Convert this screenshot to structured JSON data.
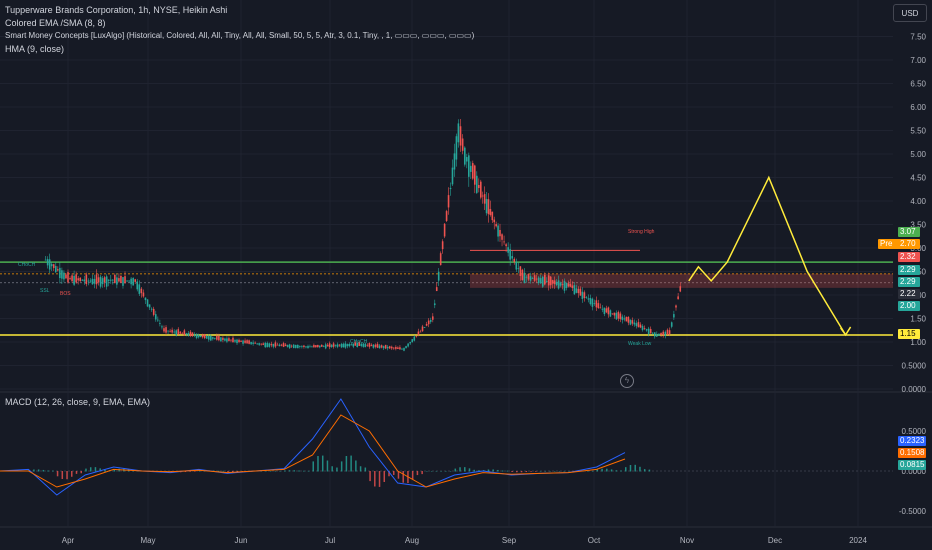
{
  "legend": {
    "title": "Tupperware Brands Corporation, 1h, NYSE, Heikin Ashi",
    "ema": "Colored EMA /SMA (8, 8)",
    "smc": "Smart Money Concepts [LuxAlgo] (Historical, Colored, All, All, Tiny, All, All, Small, 50, 5, 5, Atr, 3, 0.1, Tiny, , 1, ▭▭▭, ▭▭▭, ▭▭▭)",
    "hma": "HMA (9, close)",
    "macd": "MACD (12, 26, close, 9, EMA, EMA)"
  },
  "currency_button": "USD",
  "colors": {
    "background": "#161a25",
    "up": "#26a69a",
    "down": "#ef5350",
    "yellow": "#ffeb3b",
    "green_line": "#4caf50",
    "macd": "#2962ff",
    "signal": "#ff6d00"
  },
  "chart_data": [
    {
      "type": "line",
      "series": [
        {
          "name": "",
          "x": [
            "Mar 25",
            "Apr 1",
            "Apr 8",
            "Apr 15",
            "Apr 22",
            "May 1",
            "May 15",
            "Jun 1",
            "Jun 15",
            "Jul 1",
            "Jul 15",
            "Jul 24",
            "Aug 1",
            "Aug 3",
            "Aug 8",
            "Aug 14",
            "Aug 21",
            "Aug 28",
            "Sep 5",
            "Sep 15",
            "Sep 25",
            "Oct 2",
            "Oct 6",
            "Oct 10"
          ],
          "values": [
            2.75,
            2.35,
            2.3,
            2.32,
            2.3,
            1.25,
            1.1,
            0.95,
            0.9,
            0.95,
            0.85,
            1.5,
            5.5,
            5.0,
            4.2,
            3.3,
            2.4,
            2.3,
            2.2,
            1.7,
            1.4,
            1.15,
            1.2,
            2.3
          ]
        }
      ],
      "projection": {
        "x": [
          "Oct 12",
          "Oct 15",
          "Oct 19",
          "Oct 24",
          "Nov 6",
          "Nov 18",
          "Nov 30"
        ],
        "values": [
          2.3,
          2.6,
          2.3,
          2.7,
          4.5,
          2.5,
          1.15
        ]
      },
      "levels": [
        {
          "name": "green-resistance",
          "value": 2.7
        },
        {
          "name": "yellow-support",
          "value": 1.15
        },
        {
          "name": "orange-dotted",
          "value": 2.45
        },
        {
          "name": "gray-dotted",
          "value": 2.26
        }
      ],
      "annotations": [
        "CHoCH",
        "BOS",
        "SSL",
        "CHoCH",
        "Strong High",
        "Weak Low"
      ],
      "y_ticks": [
        "7.50",
        "7.00",
        "6.50",
        "6.00",
        "5.50",
        "5.00",
        "4.50",
        "4.00",
        "3.50",
        "3.00",
        "2.50",
        "2.00",
        "1.50",
        "1.00",
        "0.5000",
        "0.0000"
      ],
      "x_ticks": [
        "Apr",
        "May",
        "Jun",
        "Jul",
        "Aug",
        "Sep",
        "Oct",
        "Nov",
        "Dec",
        "2024"
      ],
      "price_tags": [
        {
          "label": "3.07",
          "color": "#4caf50"
        },
        {
          "label": "Pre",
          "color": "#ff9800"
        },
        {
          "label": "2.70",
          "color": "#ff9800"
        },
        {
          "label": "2.32",
          "color": "#ef5350"
        },
        {
          "label": "2.29",
          "color": "#26a69a"
        },
        {
          "label": "2.29",
          "color": "#26a69a"
        },
        {
          "label": "2.22",
          "color": "#2a2e39"
        },
        {
          "label": "2.00",
          "color": "#26a69a"
        },
        {
          "label": "1.15",
          "color": "#ffeb3b"
        }
      ]
    },
    {
      "type": "line",
      "title": "MACD (12, 26, close, 9, EMA, EMA)",
      "y_ticks": [
        "0.5000",
        "0.0000",
        "-0.5000"
      ],
      "series": [
        {
          "name": "",
          "values": [
            0.0,
            0.02,
            -0.3,
            -0.05,
            0.05,
            0.0,
            -0.02,
            0.02,
            -0.03,
            0.0,
            0.03,
            0.4,
            0.9,
            0.3,
            -0.15,
            -0.2,
            -0.05,
            0.0,
            -0.05,
            -0.03,
            -0.02,
            0.05,
            0.23
          ]
        },
        {
          "name": "",
          "values": [
            0.0,
            0.0,
            -0.2,
            -0.1,
            0.02,
            0.0,
            -0.01,
            0.01,
            -0.02,
            0.0,
            0.02,
            0.2,
            0.7,
            0.5,
            0.0,
            -0.2,
            -0.1,
            -0.02,
            -0.04,
            -0.03,
            -0.02,
            0.02,
            0.15
          ]
        }
      ],
      "price_tags": [
        {
          "label": "0.2323",
          "color": "#2962ff"
        },
        {
          "label": "0.1508",
          "color": "#ff6d00"
        },
        {
          "label": "0.0815",
          "color": "#26a69a"
        }
      ]
    }
  ]
}
